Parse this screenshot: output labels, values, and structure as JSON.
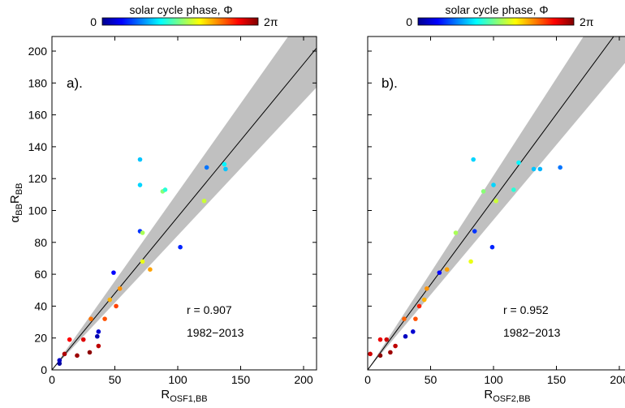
{
  "colorbar": {
    "title": "solar cycle phase, Φ",
    "min_label": "0",
    "max_label": "2π",
    "colormap": "jet"
  },
  "chart_data": [
    {
      "type": "scatter",
      "panel_label": "a).",
      "xlabel_main": "R",
      "xlabel_sub": "OSF1,BB",
      "ylabel_main": "α",
      "ylabel_sub1": "BB",
      "ylabel_mid": "R",
      "ylabel_sub2": "BB",
      "xlim": [
        0,
        210
      ],
      "ylim": [
        0,
        210
      ],
      "xticks": [
        0,
        50,
        100,
        150,
        200
      ],
      "yticks": [
        0,
        20,
        40,
        60,
        80,
        100,
        120,
        140,
        160,
        180,
        200
      ],
      "fit_line": {
        "slope": 0.96,
        "intercept": 0
      },
      "band": {
        "start": [
          0,
          0
        ],
        "upper_end": [
          210,
          234
        ],
        "lower_end": [
          210,
          177
        ]
      },
      "r_text": "r = 0.907",
      "period_text": "1982−2013",
      "points": [
        {
          "x": 6,
          "y": 4,
          "phase": 0.2
        },
        {
          "x": 6,
          "y": 6,
          "phase": 0.4
        },
        {
          "x": 10,
          "y": 10,
          "phase": 6.0
        },
        {
          "x": 14,
          "y": 19,
          "phase": 5.5
        },
        {
          "x": 20,
          "y": 9,
          "phase": 6.1
        },
        {
          "x": 25,
          "y": 19,
          "phase": 5.7
        },
        {
          "x": 30,
          "y": 11,
          "phase": 6.2
        },
        {
          "x": 31,
          "y": 32,
          "phase": 4.8
        },
        {
          "x": 36,
          "y": 21,
          "phase": 0.3
        },
        {
          "x": 37,
          "y": 24,
          "phase": 0.5
        },
        {
          "x": 37,
          "y": 15,
          "phase": 5.9
        },
        {
          "x": 42,
          "y": 32,
          "phase": 5.0
        },
        {
          "x": 46,
          "y": 44,
          "phase": 4.4
        },
        {
          "x": 49,
          "y": 61,
          "phase": 0.8
        },
        {
          "x": 51,
          "y": 40,
          "phase": 5.1
        },
        {
          "x": 54,
          "y": 51,
          "phase": 4.6
        },
        {
          "x": 70,
          "y": 132,
          "phase": 2.0
        },
        {
          "x": 70,
          "y": 116,
          "phase": 2.1
        },
        {
          "x": 70,
          "y": 87,
          "phase": 1.1
        },
        {
          "x": 72,
          "y": 86,
          "phase": 3.4
        },
        {
          "x": 72,
          "y": 68,
          "phase": 3.8
        },
        {
          "x": 78,
          "y": 63,
          "phase": 4.5
        },
        {
          "x": 88,
          "y": 112,
          "phase": 3.2
        },
        {
          "x": 90,
          "y": 113,
          "phase": 2.6
        },
        {
          "x": 102,
          "y": 77,
          "phase": 1.0
        },
        {
          "x": 121,
          "y": 106,
          "phase": 3.6
        },
        {
          "x": 123,
          "y": 127,
          "phase": 1.5
        },
        {
          "x": 137,
          "y": 129,
          "phase": 2.3
        },
        {
          "x": 138,
          "y": 126,
          "phase": 2.0
        }
      ]
    },
    {
      "type": "scatter",
      "panel_label": "b).",
      "xlabel_main": "R",
      "xlabel_sub": "OSF2,BB",
      "xlim": [
        0,
        205
      ],
      "ylim": [
        0,
        210
      ],
      "xticks": [
        0,
        50,
        100,
        150,
        200
      ],
      "xtick_labels": [
        "0",
        "50",
        "100",
        "150",
        "200"
      ],
      "fit_line": {
        "slope": 1.07,
        "intercept": 0
      },
      "band": {
        "start": [
          0,
          0
        ],
        "upper_end": [
          205,
          250
        ],
        "lower_end": [
          205,
          193
        ]
      },
      "r_text": "r = 0.952",
      "period_text": "1982−2013",
      "points": [
        {
          "x": 2,
          "y": 10,
          "phase": 5.8
        },
        {
          "x": 10,
          "y": 19,
          "phase": 5.6
        },
        {
          "x": 10,
          "y": 9,
          "phase": 6.2
        },
        {
          "x": 15,
          "y": 19,
          "phase": 5.8
        },
        {
          "x": 18,
          "y": 11,
          "phase": 6.1
        },
        {
          "x": 22,
          "y": 15,
          "phase": 5.9
        },
        {
          "x": 29,
          "y": 32,
          "phase": 4.9
        },
        {
          "x": 30,
          "y": 21,
          "phase": 0.4
        },
        {
          "x": 36,
          "y": 24,
          "phase": 0.5
        },
        {
          "x": 38,
          "y": 32,
          "phase": 5.0
        },
        {
          "x": 41,
          "y": 40,
          "phase": 5.3
        },
        {
          "x": 45,
          "y": 44,
          "phase": 4.4
        },
        {
          "x": 47,
          "y": 51,
          "phase": 4.6
        },
        {
          "x": 57,
          "y": 61,
          "phase": 0.8
        },
        {
          "x": 63,
          "y": 63,
          "phase": 4.5
        },
        {
          "x": 70,
          "y": 86,
          "phase": 3.4
        },
        {
          "x": 82,
          "y": 68,
          "phase": 3.8
        },
        {
          "x": 84,
          "y": 132,
          "phase": 2.1
        },
        {
          "x": 85,
          "y": 87,
          "phase": 1.1
        },
        {
          "x": 92,
          "y": 112,
          "phase": 3.2
        },
        {
          "x": 99,
          "y": 77,
          "phase": 1.0
        },
        {
          "x": 100,
          "y": 116,
          "phase": 2.1
        },
        {
          "x": 102,
          "y": 106,
          "phase": 3.6
        },
        {
          "x": 116,
          "y": 113,
          "phase": 2.6
        },
        {
          "x": 120,
          "y": 130,
          "phase": 2.3
        },
        {
          "x": 132,
          "y": 126,
          "phase": 2.0
        },
        {
          "x": 137,
          "y": 126,
          "phase": 1.9
        },
        {
          "x": 153,
          "y": 127,
          "phase": 1.5
        }
      ]
    }
  ]
}
